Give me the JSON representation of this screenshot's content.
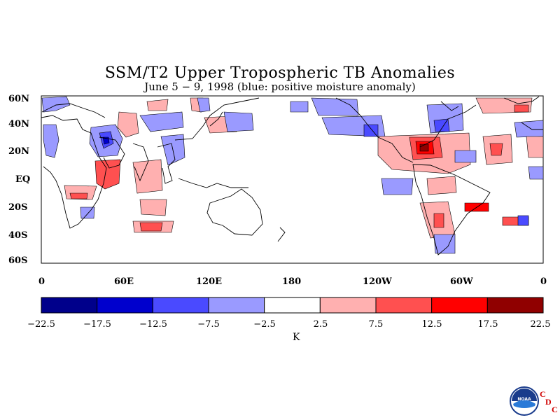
{
  "title": "SSM/T2 Upper Tropospheric TB Anomalies",
  "subtitle": "June 5 − 9, 1998 (blue: positive moisture anomaly)",
  "lat_labels": [
    "60N",
    "40N",
    "20N",
    "EQ",
    "20S",
    "40S",
    "60S"
  ],
  "lon_labels": [
    "0",
    "60E",
    "120E",
    "180",
    "120W",
    "60W",
    "0"
  ],
  "colorbar": {
    "labels": [
      "−22.5",
      "−17.5",
      "−12.5",
      "−7.5",
      "−2.5",
      "2.5",
      "7.5",
      "12.5",
      "17.5",
      "22.5"
    ],
    "colors": [
      "#00008b",
      "#0000cd",
      "#4a4aff",
      "#9a9aff",
      "#ffffff",
      "#ffb0b0",
      "#ff5050",
      "#ff0000",
      "#900000"
    ],
    "units": "K"
  },
  "logo": {
    "text": "NOAA",
    "cdc": [
      "C",
      "D",
      "C"
    ]
  }
}
